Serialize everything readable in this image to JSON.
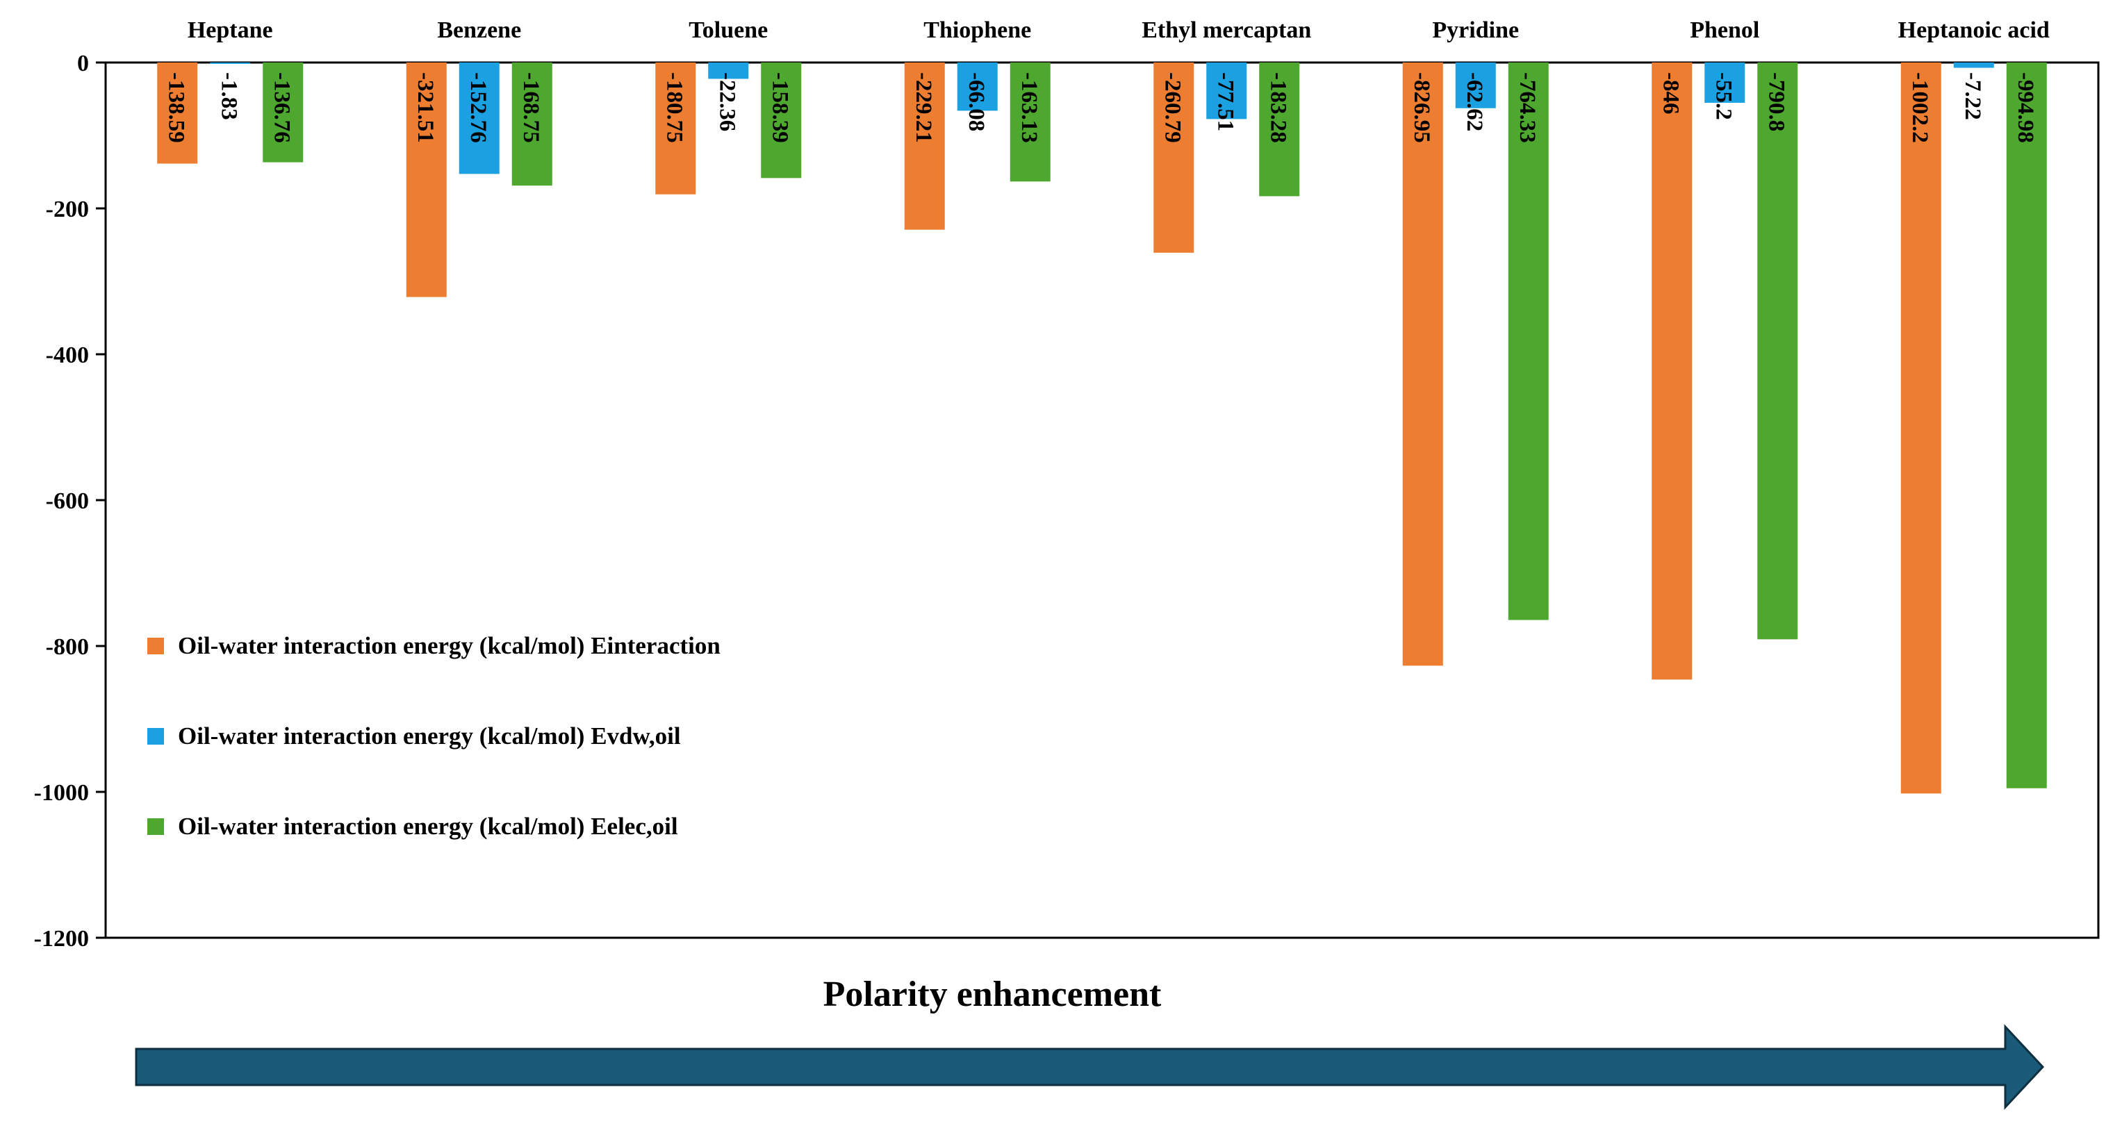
{
  "chart_data": {
    "type": "bar",
    "title": "",
    "categories": [
      "Heptane",
      "Benzene",
      "Toluene",
      "Thiophene",
      "Ethyl mercaptan",
      "Pyridine",
      "Phenol",
      "Heptanoic acid"
    ],
    "series": [
      {
        "name": "Oil-water interaction energy (kcal/mol) Einteraction",
        "color": "#ED7D31",
        "values": [
          -138.59,
          -321.51,
          -180.75,
          -229.21,
          -260.79,
          -826.95,
          -846,
          -1002.2
        ],
        "labels": [
          "-138.59",
          "-321.51",
          "-180.75",
          "-229.21",
          "-260.79",
          "-826.95",
          "-846",
          "-1002.2"
        ]
      },
      {
        "name": "Oil-water interaction energy (kcal/mol) Evdw,oil",
        "color": "#1BA1E2",
        "values": [
          -1.83,
          -152.76,
          -22.36,
          -66.08,
          -77.51,
          -62.62,
          -55.2,
          -7.22
        ],
        "labels": [
          "-1.83",
          "-152.76",
          "-22.36",
          "-66.08",
          "-77.51",
          "-62.62",
          "-55.2",
          "-7.22"
        ]
      },
      {
        "name": "Oil-water interaction energy (kcal/mol) Eelec,oil",
        "color": "#4EA72E",
        "values": [
          -136.76,
          -168.75,
          -158.39,
          -163.13,
          -183.28,
          -764.33,
          -790.8,
          -994.98
        ],
        "labels": [
          "-136.76",
          "-168.75",
          "-158.39",
          "-163.13",
          "-183.28",
          "-764.33",
          "-790.8",
          "-994.98"
        ]
      }
    ],
    "ylim": [
      -1200,
      0
    ],
    "yticks": [
      "0",
      "-200",
      "-400",
      "-600",
      "-800",
      "-1000",
      "-1200"
    ],
    "ytick_values": [
      0,
      -200,
      -400,
      -600,
      -800,
      -1000,
      -1200
    ],
    "xlabel": "Polarity enhancement",
    "ylabel": "",
    "legend_position": "lower-left inside",
    "arrow_color": "#1B5B7A",
    "grid": false
  }
}
